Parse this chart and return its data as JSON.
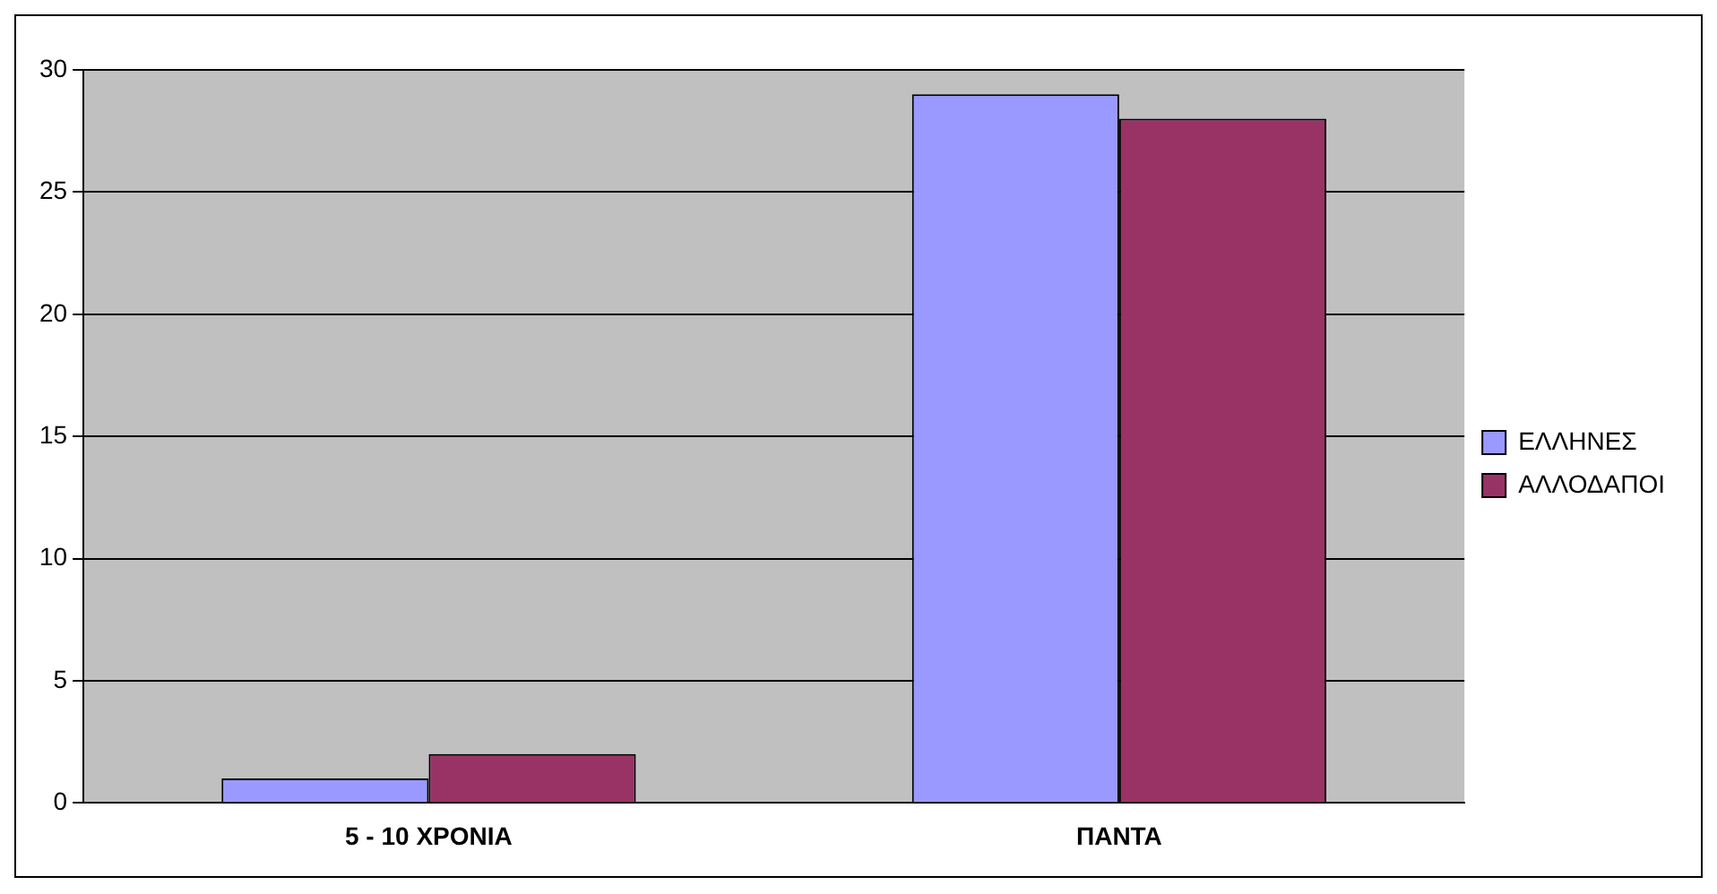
{
  "chart_data": {
    "type": "bar",
    "categories": [
      "5 - 10 ΧΡΟΝΙΑ",
      "ΠΑΝΤΑ"
    ],
    "series": [
      {
        "name": "ΕΛΛΗΝΕΣ",
        "color": "#9999ff",
        "values": [
          1,
          29
        ]
      },
      {
        "name": "ΑΛΛΟΔΑΠΟΙ",
        "color": "#993366",
        "values": [
          2,
          28
        ]
      }
    ],
    "ylim": [
      0,
      30
    ],
    "yticks": [
      0,
      5,
      10,
      15,
      20,
      25,
      30
    ],
    "grid": "y",
    "legend": "right"
  }
}
